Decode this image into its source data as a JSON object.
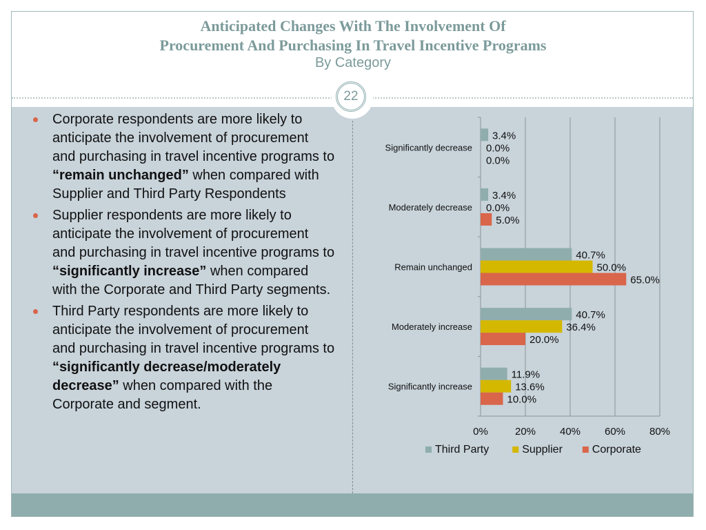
{
  "header": {
    "title_line1": "Anticipated Changes With The Involvement Of",
    "title_line2": "Procurement And Purchasing In Travel Incentive Programs",
    "subtitle": "By Category",
    "page_number": "22"
  },
  "bullets": [
    {
      "before": "Corporate respondents are more likely to anticipate the involvement of procurement and purchasing in travel incentive programs to ",
      "bold": "“remain unchanged”",
      "after": " when compared with Supplier and Third Party Respondents"
    },
    {
      "before": "Supplier respondents are more likely to anticipate the involvement of procurement and purchasing in travel incentive programs to ",
      "bold": "“significantly increase”",
      "after": " when compared with the Corporate and Third Party segments."
    },
    {
      "before": "Third Party respondents are more likely to anticipate the involvement of procurement and purchasing in travel incentive programs to ",
      "bold": "“significantly decrease/moderately decrease”",
      "after": " when compared with the Corporate and segment."
    }
  ],
  "colors": {
    "third_party": "#8fadad",
    "supplier": "#d4b800",
    "corporate": "#d9654a",
    "background": "#c8d3da",
    "accent": "#7c9a9a"
  },
  "chart_data": {
    "type": "bar",
    "orientation": "horizontal",
    "categories": [
      "Significantly decrease",
      "Moderately decrease",
      "Remain unchanged",
      "Moderately increase",
      "Significantly increase"
    ],
    "series": [
      {
        "name": "Third Party",
        "color": "#8fadad",
        "values": [
          3.4,
          3.4,
          40.7,
          40.7,
          11.9
        ],
        "labels": [
          "3.4%",
          "3.4%",
          "40.7%",
          "40.7%",
          "11.9%"
        ]
      },
      {
        "name": "Supplier",
        "color": "#d4b800",
        "values": [
          0.0,
          0.0,
          50.0,
          36.4,
          13.6
        ],
        "labels": [
          "0.0%",
          "0.0%",
          "50.0%",
          "36.4%",
          "13.6%"
        ]
      },
      {
        "name": "Corporate",
        "color": "#d9654a",
        "values": [
          0.0,
          5.0,
          65.0,
          20.0,
          10.0
        ],
        "labels": [
          "0.0%",
          "5.0%",
          "65.0%",
          "20.0%",
          "10.0%"
        ]
      }
    ],
    "xlim": [
      0,
      80
    ],
    "xticks": [
      "0%",
      "20%",
      "40%",
      "60%",
      "80%"
    ],
    "grid": true,
    "legend": "bottom"
  }
}
